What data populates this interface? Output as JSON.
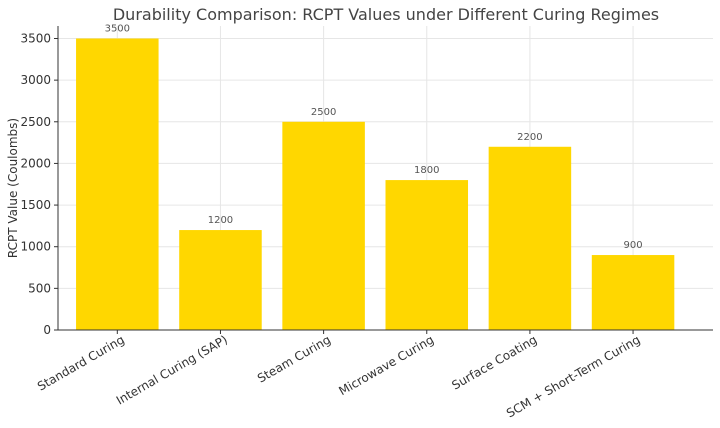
{
  "chart_data": {
    "type": "bar",
    "title": "Durability Comparison: RCPT Values under Different Curing Regimes",
    "xlabel": "",
    "ylabel": "RCPT Value (Coulombs)",
    "categories": [
      "Standard Curing",
      "Internal Curing (SAP)",
      "Steam Curing",
      "Microwave Curing",
      "Surface Coating",
      "SCM + Short-Term Curing"
    ],
    "values": [
      3500,
      1200,
      2500,
      1800,
      2200,
      900
    ],
    "ylim": [
      0,
      3650
    ],
    "yticks": [
      0,
      500,
      1000,
      1500,
      2000,
      2500,
      3000,
      3500
    ],
    "grid": true,
    "bar_color": "#ffd700",
    "grid_color": "#e6e6e6"
  }
}
